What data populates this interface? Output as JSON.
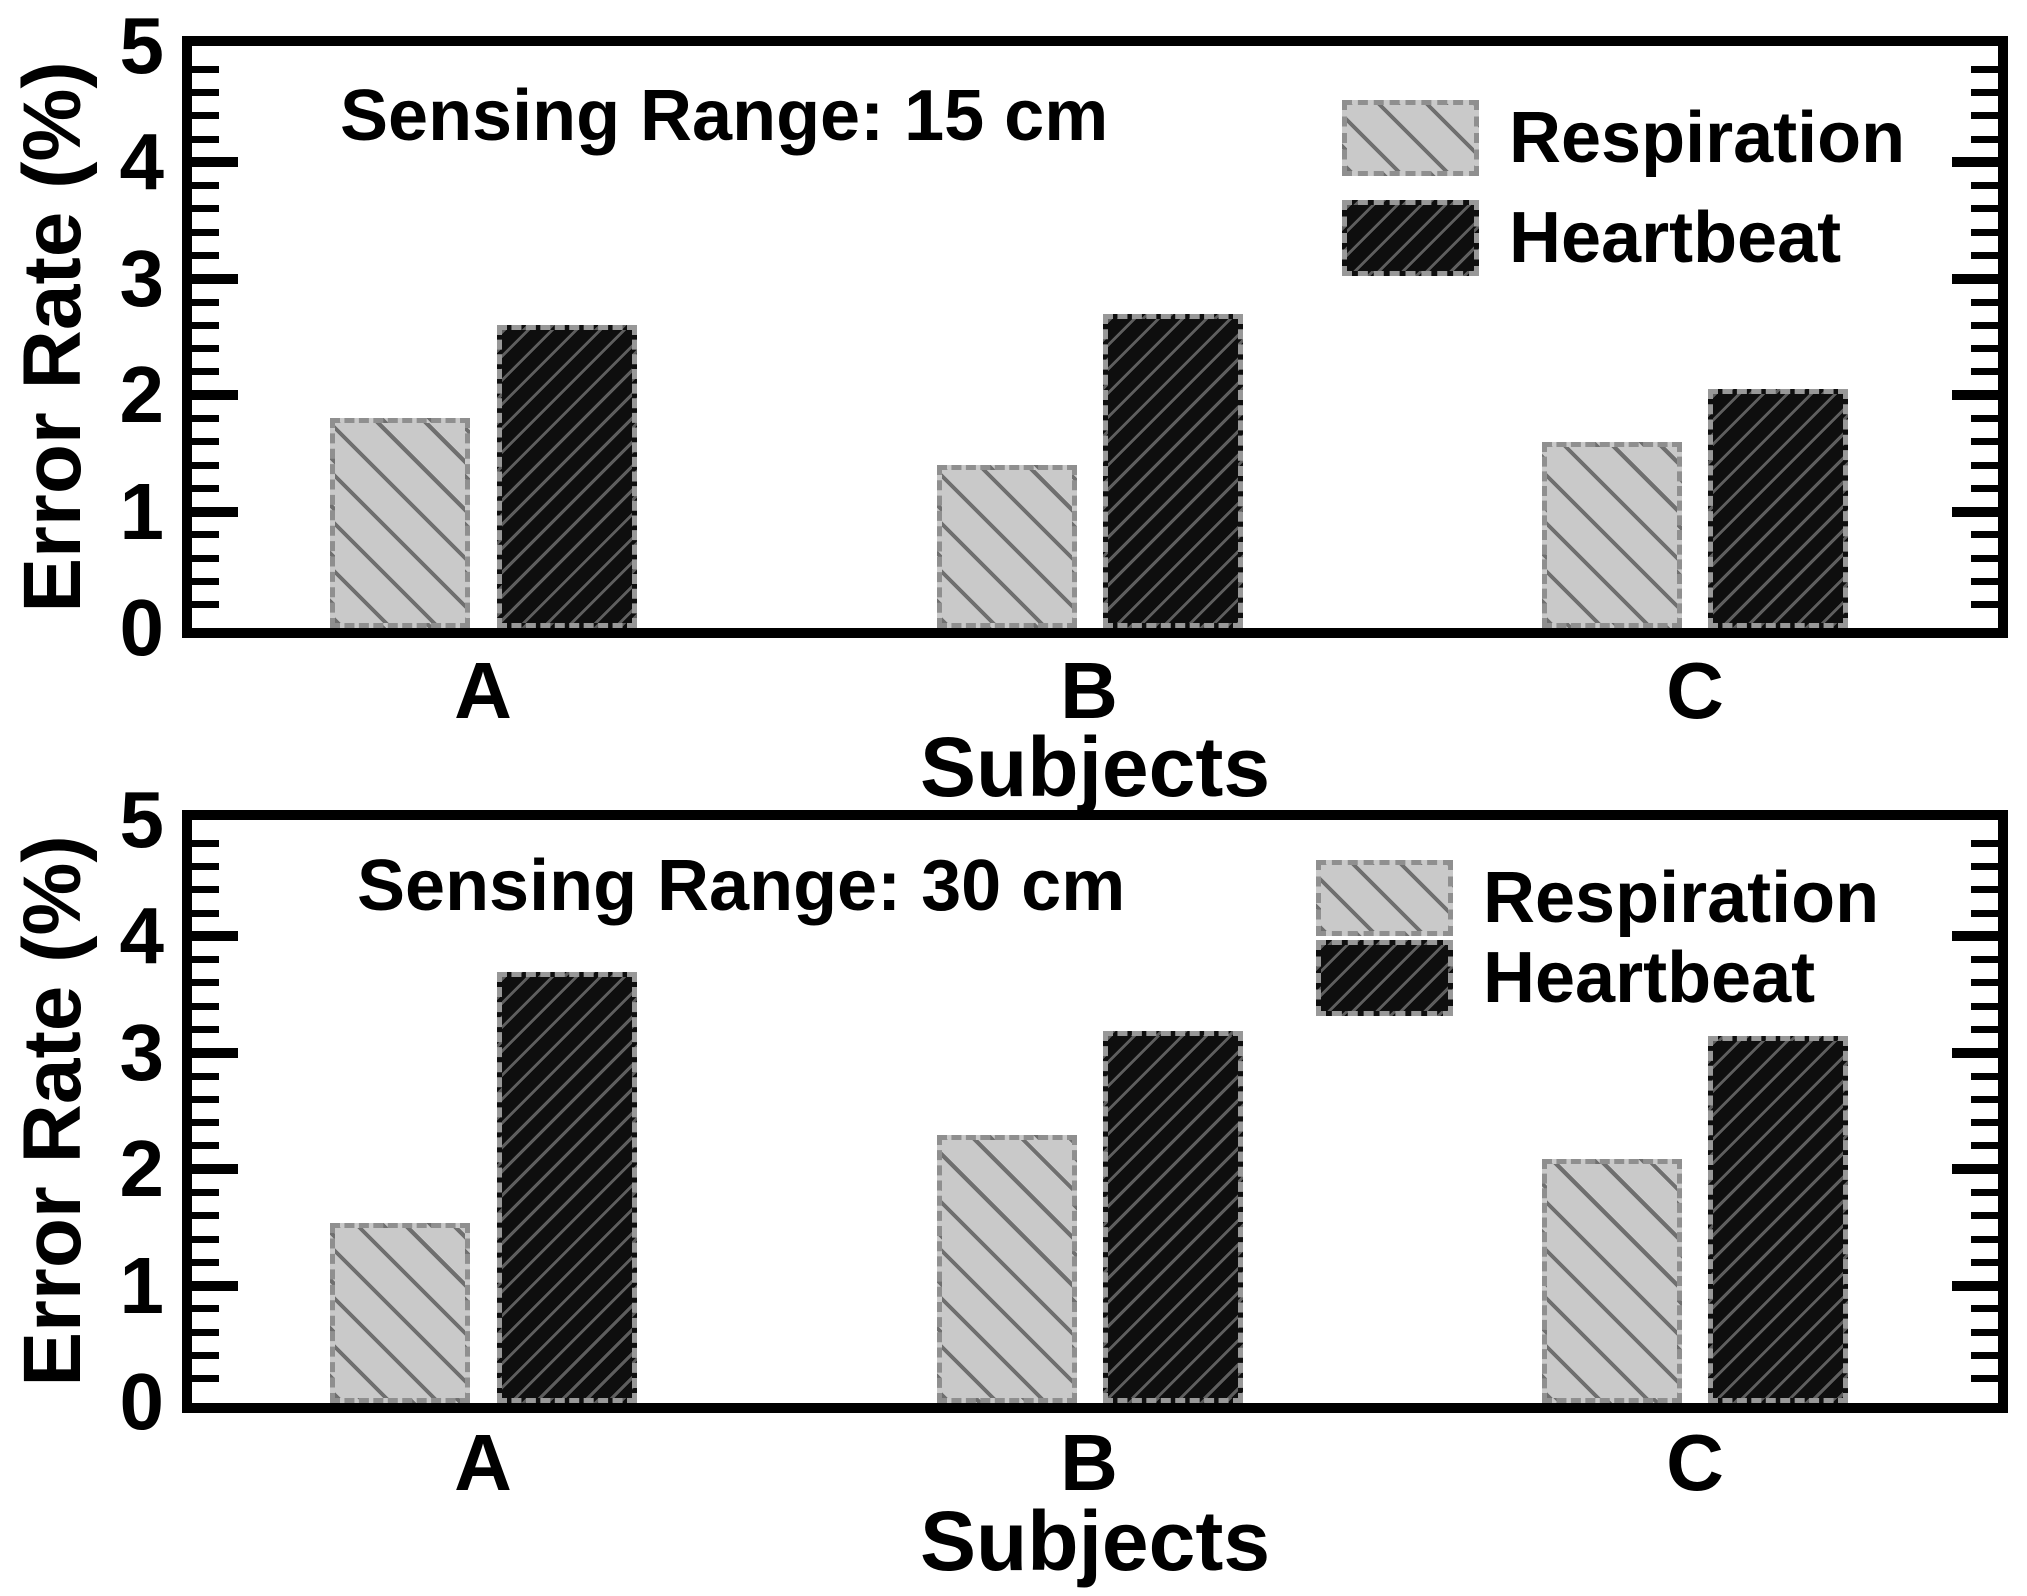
{
  "figure": {
    "background": "#ffffff",
    "axis_color": "#000000"
  },
  "colors": {
    "respiration_fill": "#c9c9c9",
    "respiration_hatch": "#5f5f5f",
    "respiration_border": "#8f8f8f",
    "heartbeat_fill": "#0e0e0e",
    "heartbeat_hatch": "#bebebe",
    "heartbeat_border": "#989898"
  },
  "chart_data": [
    {
      "type": "bar",
      "title": "Sensing Range: 15 cm",
      "xlabel": "Subjects",
      "ylabel": "Error Rate (%)",
      "categories": [
        "A",
        "B",
        "C"
      ],
      "series": [
        {
          "name": "Respiration",
          "values": [
            1.8,
            1.4,
            1.6
          ],
          "hatch": "\\",
          "fill": "#c9c9c9"
        },
        {
          "name": "Heartbeat",
          "values": [
            2.6,
            2.7,
            2.05
          ],
          "hatch": "/",
          "fill": "#0e0e0e"
        }
      ],
      "ylim": [
        0,
        5
      ],
      "yticks": [
        0,
        1,
        2,
        3,
        4,
        5
      ],
      "minor_tick_step": 0.2,
      "grid": "off",
      "legend_position": "top-right"
    },
    {
      "type": "bar",
      "title": "Sensing Range: 30 cm",
      "xlabel": "Subjects",
      "ylabel": "Error Rate (%)",
      "categories": [
        "A",
        "B",
        "C"
      ],
      "series": [
        {
          "name": "Respiration",
          "values": [
            1.55,
            2.3,
            2.1
          ],
          "hatch": "\\",
          "fill": "#c9c9c9"
        },
        {
          "name": "Heartbeat",
          "values": [
            3.7,
            3.2,
            3.15
          ],
          "hatch": "/",
          "fill": "#0e0e0e"
        }
      ],
      "ylim": [
        0,
        5
      ],
      "yticks": [
        0,
        1,
        2,
        3,
        4,
        5
      ],
      "minor_tick_step": 0.2,
      "grid": "off",
      "legend_position": "top-right"
    }
  ]
}
